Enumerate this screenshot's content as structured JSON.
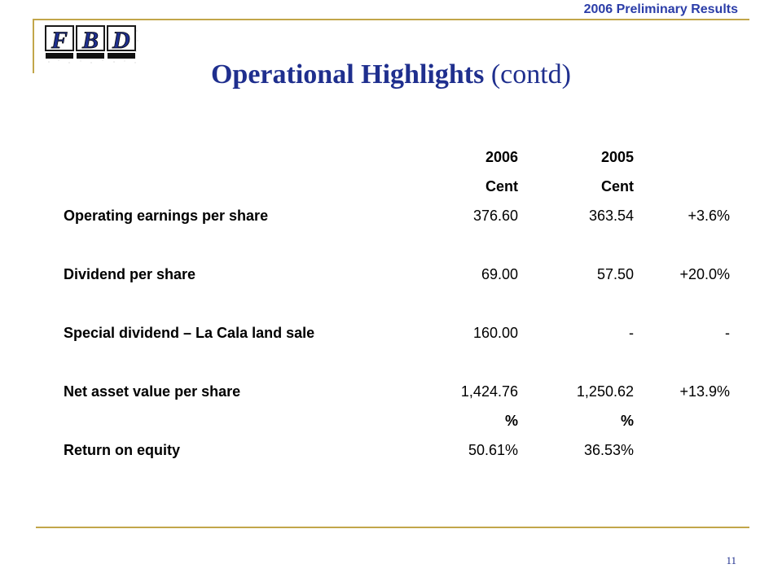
{
  "header": {
    "tag": "2006 Preliminary Results"
  },
  "logo": {
    "text": "FBD",
    "letters": [
      "F",
      "B",
      "D"
    ]
  },
  "title": {
    "bold": "Operational Highlights",
    "normal": "(contd)"
  },
  "table": {
    "year_headers": [
      "2006",
      "2005",
      ""
    ],
    "unit_headers": [
      "Cent",
      "Cent",
      ""
    ],
    "rows": [
      {
        "label": "Operating earnings per share",
        "v2006": "376.60",
        "v2005": "363.54",
        "change": "+3.6%"
      },
      {
        "label": "Dividend per share",
        "v2006": "69.00",
        "v2005": "57.50",
        "change": "+20.0%"
      },
      {
        "label": "Special dividend – La Cala land sale",
        "v2006": "160.00",
        "v2005": "-",
        "change": "-"
      },
      {
        "label": "Net asset value per share",
        "v2006": "1,424.76",
        "v2005": "1,250.62",
        "change": "+13.9%"
      }
    ],
    "pct_headers": [
      "%",
      "%",
      ""
    ],
    "roe": {
      "label": "Return on equity",
      "v2006": "50.61%",
      "v2005": "36.53%",
      "change": ""
    }
  },
  "footer": {
    "page_number": "11"
  },
  "colors": {
    "accent_rule": "#c2a64a",
    "title_blue": "#1f2f8e",
    "header_blue": "#2b3da8"
  }
}
